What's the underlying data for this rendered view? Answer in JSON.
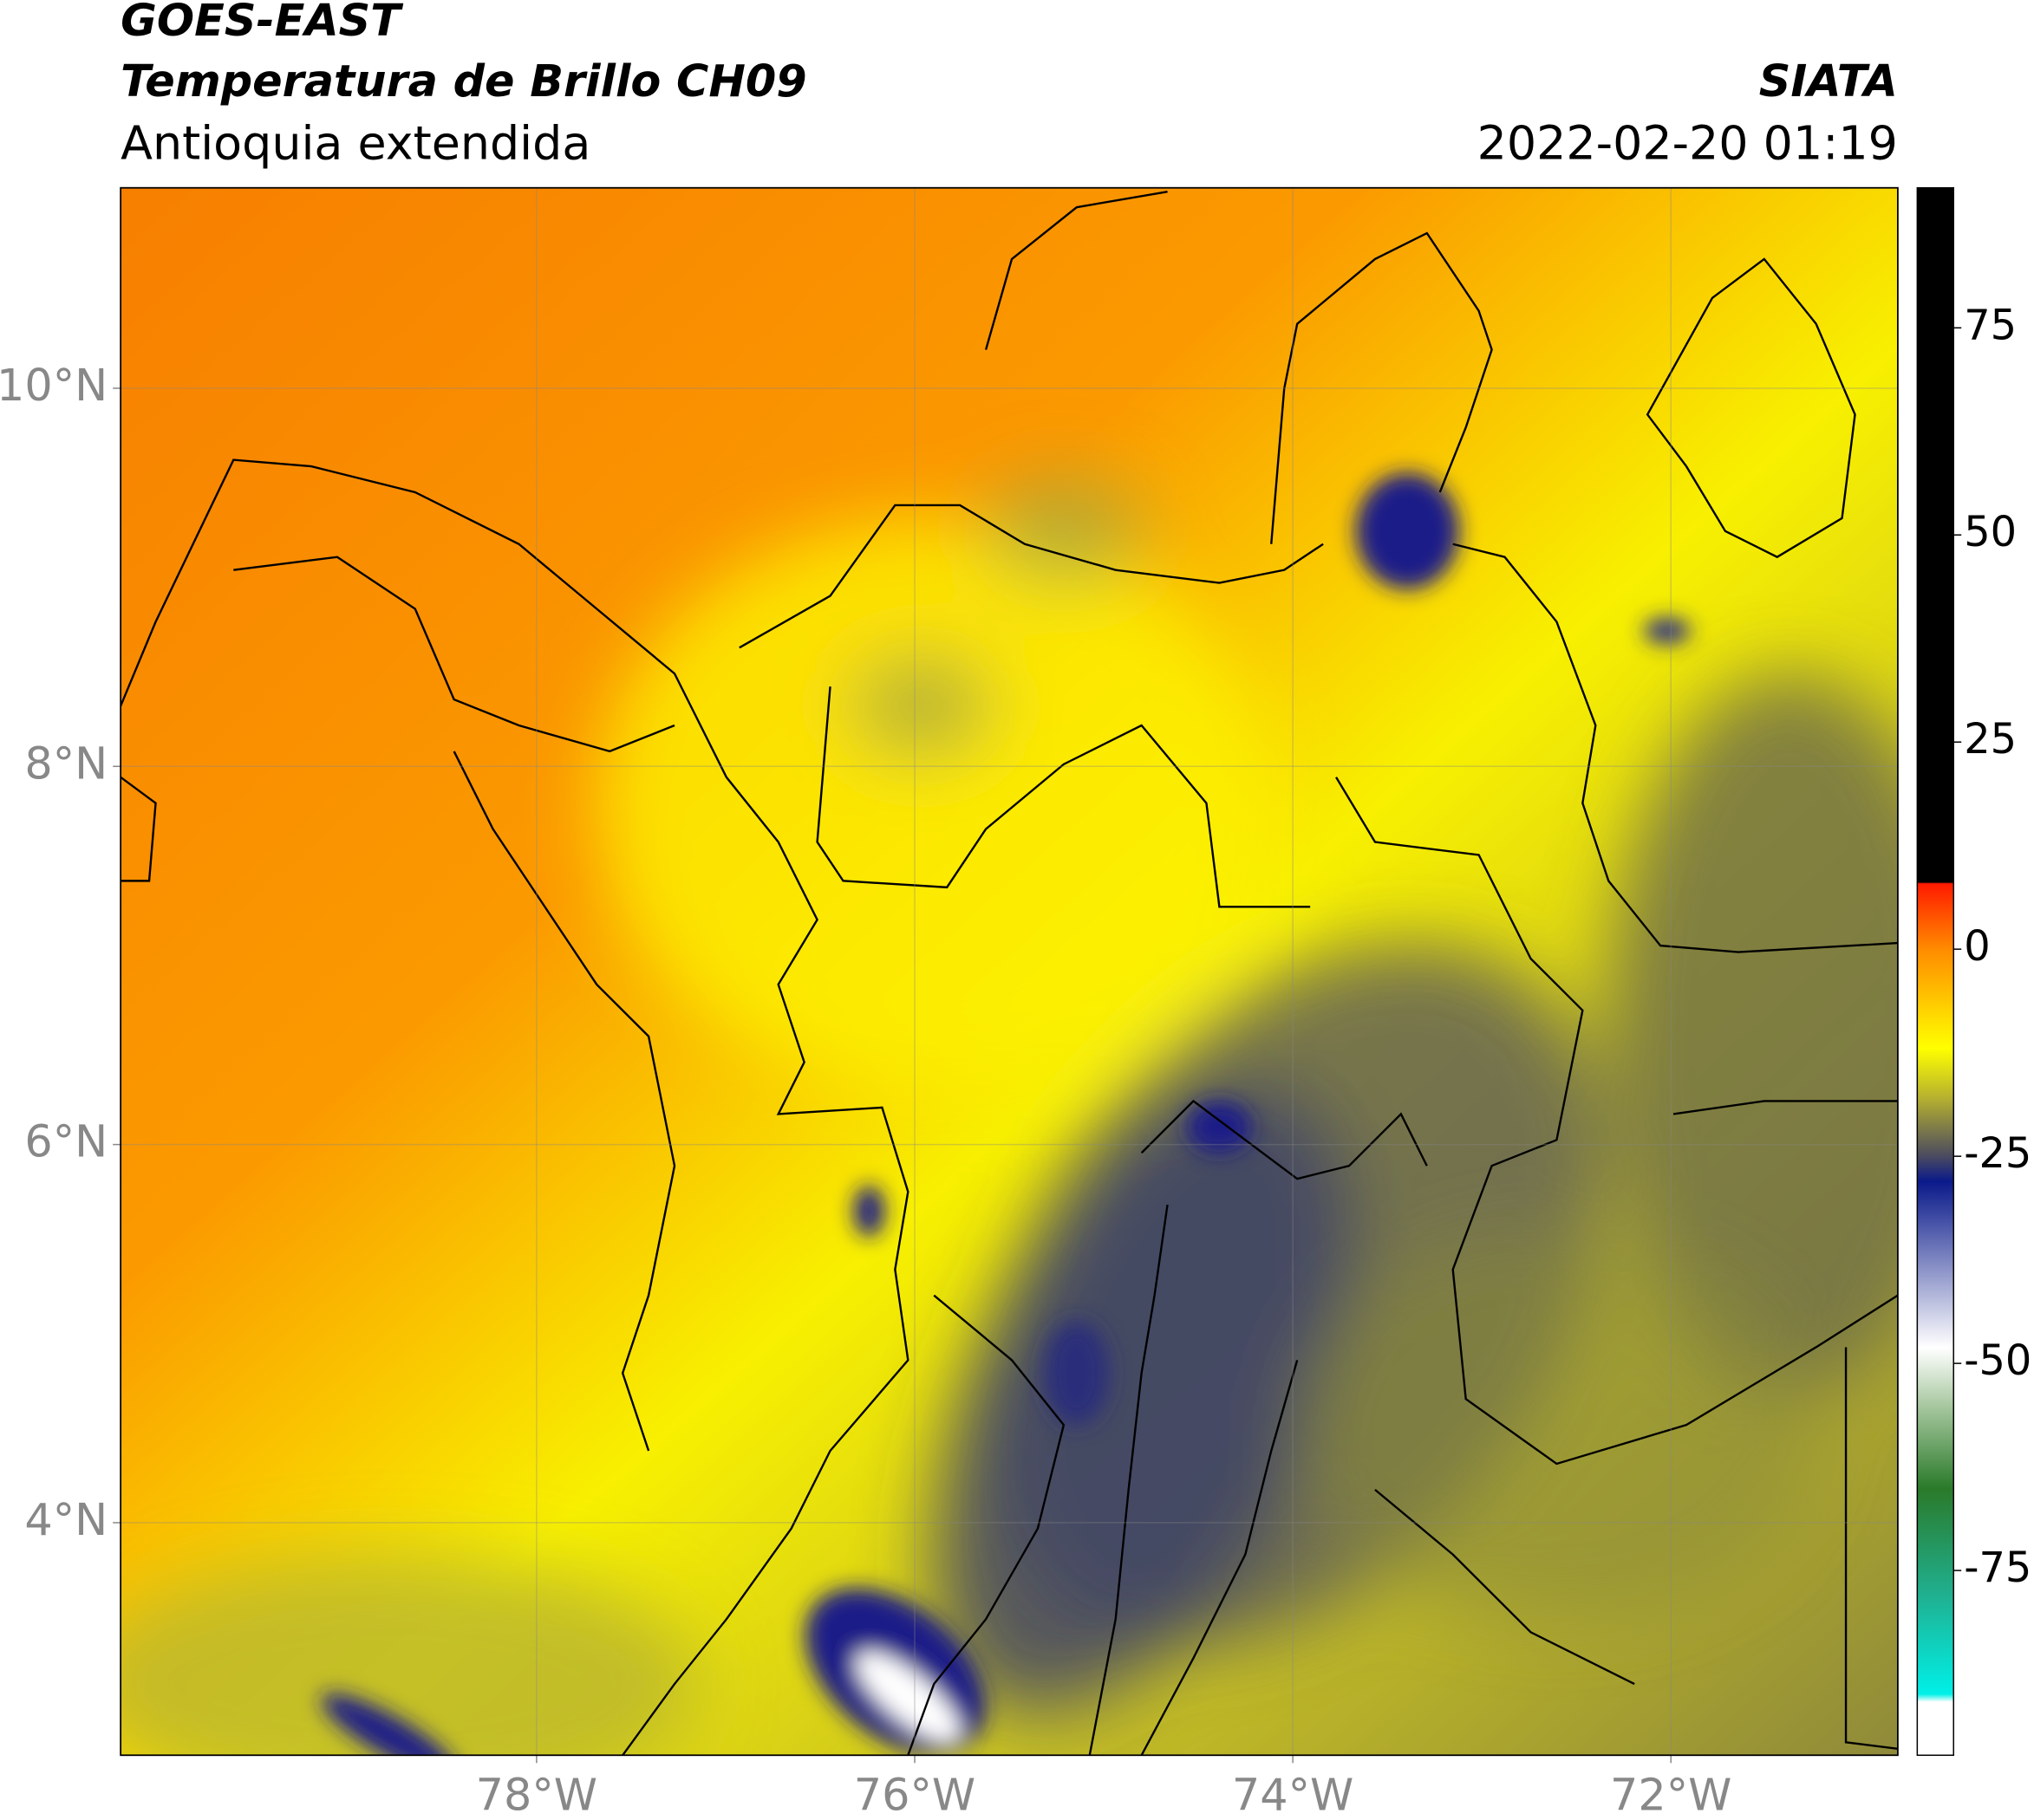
{
  "header": {
    "satellite": "GOES-EAST",
    "title": "Temperatura de Brillo CH09",
    "region": "Antioquia extendida",
    "source": "SIATA",
    "timestamp": "2022-02-20 01:19"
  },
  "map": {
    "xlim": [
      -80.2,
      -70.8
    ],
    "ylim": [
      2.77,
      11.06
    ],
    "xticks": [
      {
        "value": -78,
        "label": "78°W"
      },
      {
        "value": -76,
        "label": "76°W"
      },
      {
        "value": -74,
        "label": "74°W"
      },
      {
        "value": -72,
        "label": "72°W"
      }
    ],
    "yticks": [
      {
        "value": 4,
        "label": "4°N"
      },
      {
        "value": 6,
        "label": "6°N"
      },
      {
        "value": 8,
        "label": "8°N"
      },
      {
        "value": 10,
        "label": "10°N"
      }
    ],
    "grid": true
  },
  "colorbar": {
    "lim": [
      -97.3,
      91.9
    ],
    "ticks": [
      75,
      50,
      25,
      0,
      -25,
      -50,
      -75
    ]
  }
}
